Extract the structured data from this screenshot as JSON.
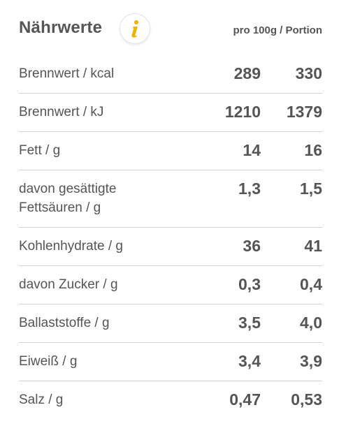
{
  "header": {
    "title": "Nährwerte",
    "columns_label": "pro 100g / Portion",
    "info_icon": "info-icon",
    "accent_color": "#f2b300"
  },
  "rows": [
    {
      "label": "Brennwert / kcal",
      "per100g": "289",
      "portion": "330"
    },
    {
      "label": "Brennwert / kJ",
      "per100g": "1210",
      "portion": "1379"
    },
    {
      "label": "Fett / g",
      "per100g": "14",
      "portion": "16"
    },
    {
      "label": "davon gesättigte Fettsäuren / g",
      "per100g": "1,3",
      "portion": "1,5"
    },
    {
      "label": "Kohlenhydrate / g",
      "per100g": "36",
      "portion": "41"
    },
    {
      "label": "davon Zucker / g",
      "per100g": "0,3",
      "portion": "0,4"
    },
    {
      "label": "Ballaststoffe / g",
      "per100g": "3,5",
      "portion": "4,0"
    },
    {
      "label": "Eiweiß / g",
      "per100g": "3,4",
      "portion": "3,9"
    },
    {
      "label": "Salz / g",
      "per100g": "0,47",
      "portion": "0,53"
    }
  ]
}
